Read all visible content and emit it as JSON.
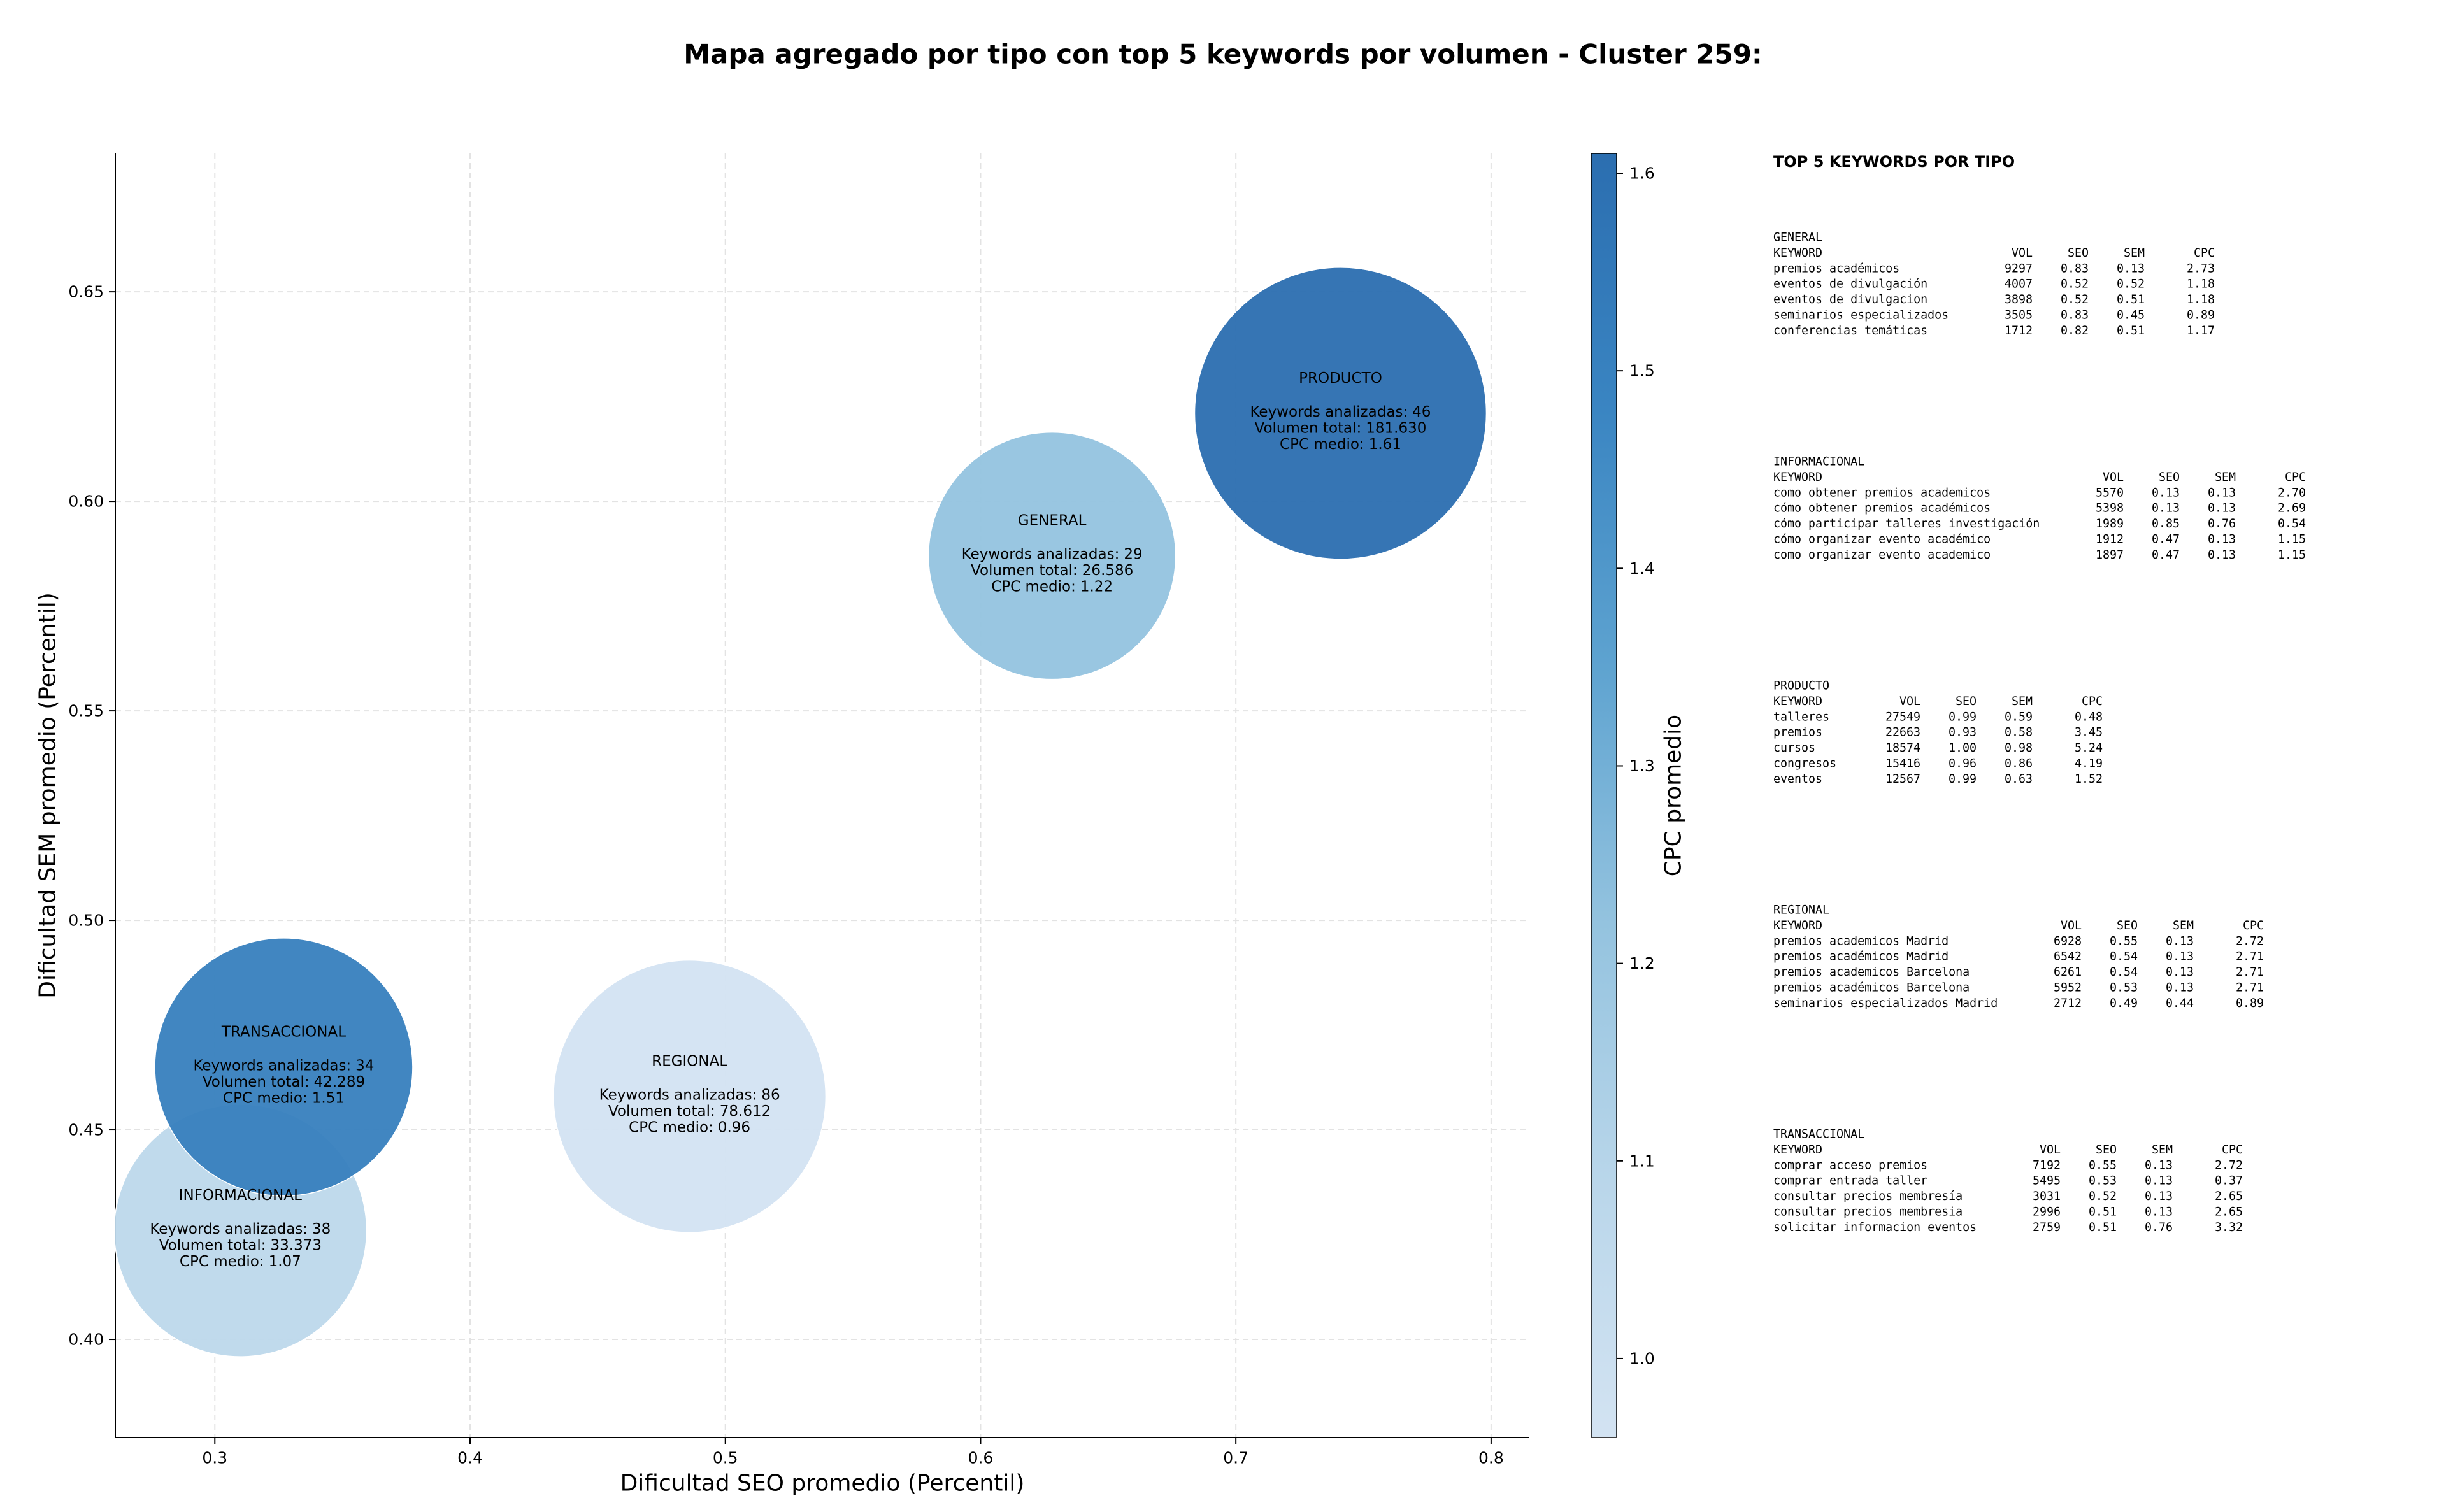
{
  "chart_data": {
    "type": "bubble",
    "title": "Mapa agregado por tipo con top 5 keywords por volumen - Cluster 259:",
    "x_label": "Dificultad SEO promedio (Percentil)",
    "y_label": "Dificultad SEM promedio (Percentil)",
    "xlim": [
      0.261,
      0.815
    ],
    "ylim": [
      0.3766,
      0.683
    ],
    "xticks": [
      0.3,
      0.4,
      0.5,
      0.6,
      0.7,
      0.8
    ],
    "yticks": [
      {
        "value": 0.4,
        "label": "0.40"
      },
      {
        "value": 0.45,
        "label": "0.45"
      },
      {
        "value": 0.5,
        "label": "0.50"
      },
      {
        "value": 0.55,
        "label": "0.55"
      },
      {
        "value": 0.6,
        "label": "0.60"
      },
      {
        "value": 0.65,
        "label": "0.65"
      }
    ],
    "grid": true,
    "categories": [
      "GENERAL",
      "INFORMACIONAL",
      "PRODUCTO",
      "REGIONAL",
      "TRANSACCIONAL"
    ],
    "x": [
      0.628,
      0.31,
      0.741,
      0.486,
      0.327
    ],
    "values": [
      0.587,
      0.426,
      0.621,
      0.458,
      0.465
    ],
    "annotation_labels": [
      "Keywords analizadas:",
      "Volumen total:",
      "CPC medio:"
    ],
    "keywords": [
      29,
      38,
      46,
      86,
      34
    ],
    "volumes": [
      26586,
      33373,
      181630,
      78612,
      42289
    ],
    "volume_labels": [
      "26.586",
      "33.373",
      "181.630",
      "78.612",
      "42.289"
    ],
    "cpc": [
      1.22,
      1.07,
      1.61,
      0.96,
      1.51
    ],
    "colorbar": {
      "label": "CPC promedio",
      "lim": [
        0.96,
        1.61
      ],
      "ticks": [
        {
          "value": 1,
          "label": "1.0"
        },
        1.1,
        1.2,
        1.3,
        1.4,
        1.5,
        1.6
      ],
      "colormap": [
        "#d3e3f2",
        "#b9d6ea",
        "#94c3df",
        "#5ea3d0",
        "#3a85c2",
        "#2b6eb0"
      ]
    }
  },
  "keyword_panel": {
    "title": "TOP 5 KEYWORDS POR TIPO",
    "columns": [
      "KEYWORD",
      "VOL",
      "SEO",
      "SEM",
      "CPC"
    ],
    "groups": [
      {
        "name": "GENERAL",
        "rows": [
          [
            "premios académicos",
            "9297",
            "0.83",
            "0.13",
            "2.73"
          ],
          [
            "eventos de divulgación",
            "4007",
            "0.52",
            "0.52",
            "1.18"
          ],
          [
            "eventos de divulgacion",
            "3898",
            "0.52",
            "0.51",
            "1.18"
          ],
          [
            "seminarios especializados",
            "3505",
            "0.83",
            "0.45",
            "0.89"
          ],
          [
            "conferencias temáticas",
            "1712",
            "0.82",
            "0.51",
            "1.17"
          ]
        ]
      },
      {
        "name": "INFORMACIONAL",
        "rows": [
          [
            "como obtener premios academicos",
            "5570",
            "0.13",
            "0.13",
            "2.70"
          ],
          [
            "cómo obtener premios académicos",
            "5398",
            "0.13",
            "0.13",
            "2.69"
          ],
          [
            "cómo participar talleres investigación",
            "1989",
            "0.85",
            "0.76",
            "0.54"
          ],
          [
            "cómo organizar evento académico",
            "1912",
            "0.47",
            "0.13",
            "1.15"
          ],
          [
            "como organizar evento academico",
            "1897",
            "0.47",
            "0.13",
            "1.15"
          ]
        ]
      },
      {
        "name": "PRODUCTO",
        "rows": [
          [
            "talleres",
            "27549",
            "0.99",
            "0.59",
            "0.48"
          ],
          [
            "premios",
            "22663",
            "0.93",
            "0.58",
            "3.45"
          ],
          [
            "cursos",
            "18574",
            "1.00",
            "0.98",
            "5.24"
          ],
          [
            "congresos",
            "15416",
            "0.96",
            "0.86",
            "4.19"
          ],
          [
            "eventos",
            "12567",
            "0.99",
            "0.63",
            "1.52"
          ]
        ]
      },
      {
        "name": "REGIONAL",
        "rows": [
          [
            "premios academicos Madrid",
            "6928",
            "0.55",
            "0.13",
            "2.72"
          ],
          [
            "premios académicos Madrid",
            "6542",
            "0.54",
            "0.13",
            "2.71"
          ],
          [
            "premios academicos Barcelona",
            "6261",
            "0.54",
            "0.13",
            "2.71"
          ],
          [
            "premios académicos Barcelona",
            "5952",
            "0.53",
            "0.13",
            "2.71"
          ],
          [
            "seminarios especializados Madrid",
            "2712",
            "0.49",
            "0.44",
            "0.89"
          ]
        ]
      },
      {
        "name": "TRANSACCIONAL",
        "rows": [
          [
            "comprar acceso premios",
            "7192",
            "0.55",
            "0.13",
            "2.72"
          ],
          [
            "comprar entrada taller",
            "5495",
            "0.53",
            "0.13",
            "0.37"
          ],
          [
            "consultar precios membresía",
            "3031",
            "0.52",
            "0.13",
            "2.65"
          ],
          [
            "consultar precios membresia",
            "2996",
            "0.51",
            "0.13",
            "2.65"
          ],
          [
            "solicitar informacion eventos",
            "2759",
            "0.51",
            "0.76",
            "3.32"
          ]
        ]
      }
    ]
  }
}
